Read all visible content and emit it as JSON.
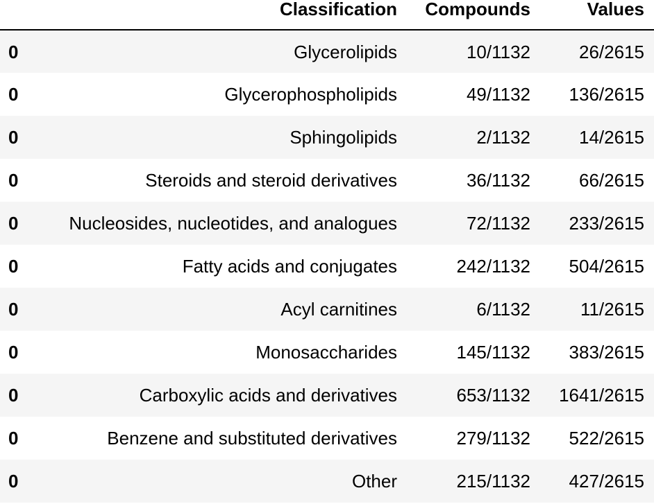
{
  "table": {
    "columns": [
      "Classification",
      "Compounds",
      "Values"
    ],
    "rows": [
      {
        "index": "0",
        "classification": "Glycerolipids",
        "compounds": "10/1132",
        "values": "26/2615"
      },
      {
        "index": "0",
        "classification": "Glycerophospholipids",
        "compounds": "49/1132",
        "values": "136/2615"
      },
      {
        "index": "0",
        "classification": "Sphingolipids",
        "compounds": "2/1132",
        "values": "14/2615"
      },
      {
        "index": "0",
        "classification": "Steroids and steroid derivatives",
        "compounds": "36/1132",
        "values": "66/2615"
      },
      {
        "index": "0",
        "classification": "Nucleosides, nucleotides, and analogues",
        "compounds": "72/1132",
        "values": "233/2615"
      },
      {
        "index": "0",
        "classification": "Fatty acids and conjugates",
        "compounds": "242/1132",
        "values": "504/2615"
      },
      {
        "index": "0",
        "classification": "Acyl carnitines",
        "compounds": "6/1132",
        "values": "11/2615"
      },
      {
        "index": "0",
        "classification": "Monosaccharides",
        "compounds": "145/1132",
        "values": "383/2615"
      },
      {
        "index": "0",
        "classification": "Carboxylic acids and derivatives",
        "compounds": "653/1132",
        "values": "1641/2615"
      },
      {
        "index": "0",
        "classification": "Benzene and substituted derivatives",
        "compounds": "279/1132",
        "values": "522/2615"
      },
      {
        "index": "0",
        "classification": "Other",
        "compounds": "215/1132",
        "values": "427/2615"
      }
    ]
  }
}
